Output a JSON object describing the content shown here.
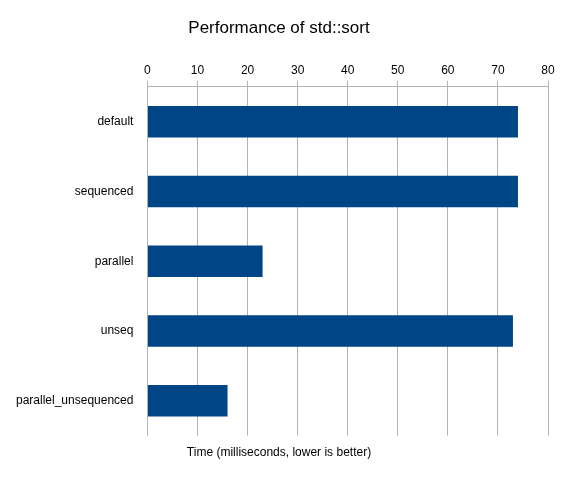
{
  "chart_data": {
    "type": "bar",
    "title": "Performance of std::sort",
    "xlabel": "Time (milliseconds, lower is better)",
    "orientation": "horizontal",
    "categories": [
      "default",
      "sequenced",
      "parallel",
      "unseq",
      "parallel_unsequenced"
    ],
    "values": [
      74,
      74,
      23,
      73,
      16
    ],
    "color": "#004586",
    "xlim": [
      0,
      80
    ],
    "xticks": [
      0,
      10,
      20,
      30,
      40,
      50,
      60,
      70,
      80
    ],
    "grid": true
  }
}
